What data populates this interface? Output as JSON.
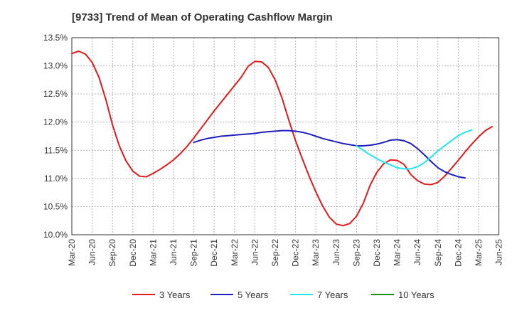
{
  "chart_data": {
    "type": "line",
    "title": "[9733]  Trend of Mean of Operating Cashflow Margin",
    "xlabel": "",
    "ylabel": "",
    "x_ticks": [
      "Mar-20",
      "Jun-20",
      "Sep-20",
      "Dec-20",
      "Mar-21",
      "Jun-21",
      "Sep-21",
      "Dec-21",
      "Mar-22",
      "Jun-22",
      "Sep-22",
      "Dec-22",
      "Mar-23",
      "Jun-23",
      "Sep-23",
      "Dec-23",
      "Mar-24",
      "Jun-24",
      "Sep-24",
      "Dec-24",
      "Mar-25",
      "Jun-25"
    ],
    "y_ticks": [
      "10.0%",
      "10.5%",
      "11.0%",
      "11.5%",
      "12.0%",
      "12.5%",
      "13.0%",
      "13.5%"
    ],
    "ylim": [
      10.0,
      13.5
    ],
    "grid": true,
    "legend_position": "bottom",
    "series": [
      {
        "name": "3 Years",
        "color": "#e31a1c",
        "start": "Mar-20",
        "values": [
          13.22,
          13.26,
          13.21,
          13.06,
          12.8,
          12.41,
          11.95,
          11.58,
          11.31,
          11.13,
          11.04,
          11.03,
          11.09,
          11.16,
          11.24,
          11.33,
          11.44,
          11.57,
          11.72,
          11.88,
          12.04,
          12.2,
          12.35,
          12.5,
          12.65,
          12.8,
          12.99,
          13.08,
          13.07,
          12.97,
          12.75,
          12.43,
          12.04,
          11.67,
          11.35,
          11.04,
          10.76,
          10.51,
          10.31,
          10.19,
          10.16,
          10.2,
          10.33,
          10.56,
          10.88,
          11.11,
          11.26,
          11.33,
          11.32,
          11.25,
          11.07,
          10.96,
          10.9,
          10.89,
          10.93,
          11.04,
          11.18,
          11.32,
          11.47,
          11.61,
          11.74,
          11.85,
          11.92
        ]
      },
      {
        "name": "5 Years",
        "color": "#1f1fbf",
        "start": "Sep-21",
        "values": [
          11.64,
          11.68,
          11.71,
          11.73,
          11.75,
          11.76,
          11.77,
          11.78,
          11.79,
          11.8,
          11.82,
          11.83,
          11.84,
          11.85,
          11.85,
          11.84,
          11.82,
          11.79,
          11.75,
          11.71,
          11.68,
          11.65,
          11.62,
          11.6,
          11.58,
          11.58,
          11.59,
          11.61,
          11.64,
          11.68,
          11.69,
          11.67,
          11.62,
          11.53,
          11.42,
          11.3,
          11.19,
          11.12,
          11.07,
          11.03,
          11.01
        ]
      },
      {
        "name": "7 Years",
        "color": "#22e5f0",
        "start": "Sep-23",
        "values": [
          11.58,
          11.5,
          11.42,
          11.35,
          11.29,
          11.24,
          11.19,
          11.17,
          11.17,
          11.21,
          11.28,
          11.38,
          11.49,
          11.58,
          11.67,
          11.76,
          11.82,
          11.86
        ]
      },
      {
        "name": "10 Years",
        "color": "#1a8c1a",
        "start": "Mar-25",
        "values": []
      }
    ]
  }
}
